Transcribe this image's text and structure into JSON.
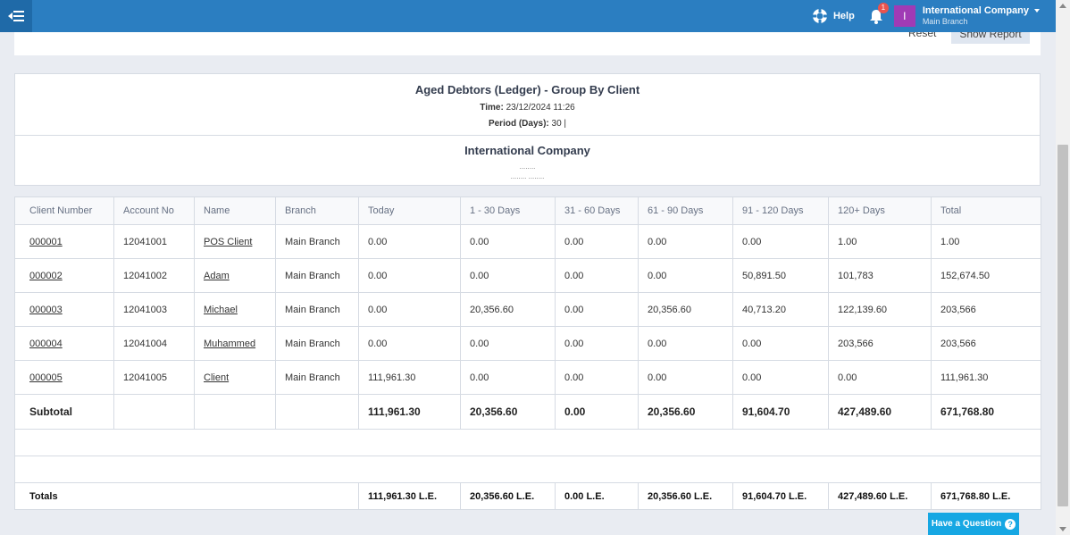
{
  "topbar": {
    "menu_icon": "menu-collapse-icon",
    "help_label": "Help",
    "notification_count": "1",
    "avatar_letter": "I",
    "company_name": "International Company",
    "branch_name": "Main Branch"
  },
  "filter": {
    "reset_label": "Reset",
    "show_report_label": "Show Report"
  },
  "report": {
    "title": "Aged Debtors (Ledger) - Group By Client",
    "time_label": "Time:",
    "time_value": "23/12/2024 11:26",
    "period_label": "Period (Days):",
    "period_value": "30 |",
    "company": "International Company",
    "dots1": "........",
    "dots2": "........ ........"
  },
  "table": {
    "headers": [
      "Client Number",
      "Account No",
      "Name",
      "Branch",
      "Today",
      "1 - 30 Days",
      "31 - 60 Days",
      "61 - 90 Days",
      "91 - 120 Days",
      "120+ Days",
      "Total"
    ],
    "rows": [
      {
        "client": "000001",
        "account": "12041001",
        "name": "POS Client",
        "branch": "Main Branch",
        "today": "0.00",
        "d30": "0.00",
        "d60": "0.00",
        "d90": "0.00",
        "d120": "0.00",
        "d120p": "1.00",
        "total": "1.00"
      },
      {
        "client": "000002",
        "account": "12041002",
        "name": "Adam",
        "branch": "Main Branch",
        "today": "0.00",
        "d30": "0.00",
        "d60": "0.00",
        "d90": "0.00",
        "d120": "50,891.50",
        "d120p": "101,783",
        "total": "152,674.50"
      },
      {
        "client": "000003",
        "account": "12041003",
        "name": "Michael",
        "branch": "Main Branch",
        "today": "0.00",
        "d30": "20,356.60",
        "d60": "0.00",
        "d90": "20,356.60",
        "d120": "40,713.20",
        "d120p": "122,139.60",
        "total": "203,566"
      },
      {
        "client": "000004",
        "account": "12041004",
        "name": "Muhammed",
        "branch": "Main Branch",
        "today": "0.00",
        "d30": "0.00",
        "d60": "0.00",
        "d90": "0.00",
        "d120": "0.00",
        "d120p": "203,566",
        "total": "203,566"
      },
      {
        "client": "000005",
        "account": "12041005",
        "name": "Client",
        "branch": "Main Branch",
        "today": "111,961.30",
        "d30": "0.00",
        "d60": "0.00",
        "d90": "0.00",
        "d120": "0.00",
        "d120p": "0.00",
        "total": "111,961.30"
      }
    ],
    "subtotal": {
      "label": "Subtotal",
      "today": "111,961.30",
      "d30": "20,356.60",
      "d60": "0.00",
      "d90": "20,356.60",
      "d120": "91,604.70",
      "d120p": "427,489.60",
      "total": "671,768.80"
    },
    "totals": {
      "label": "Totals",
      "today": "111,961.30 L.E.",
      "d30": "20,356.60 L.E.",
      "d60": "0.00 L.E.",
      "d90": "20,356.60 L.E.",
      "d120": "91,604.70 L.E.",
      "d120p": "427,489.60 L.E.",
      "total": "671,768.80 L.E."
    }
  },
  "question_button": {
    "label": "Have a Question",
    "icon": "question-circle-icon"
  }
}
